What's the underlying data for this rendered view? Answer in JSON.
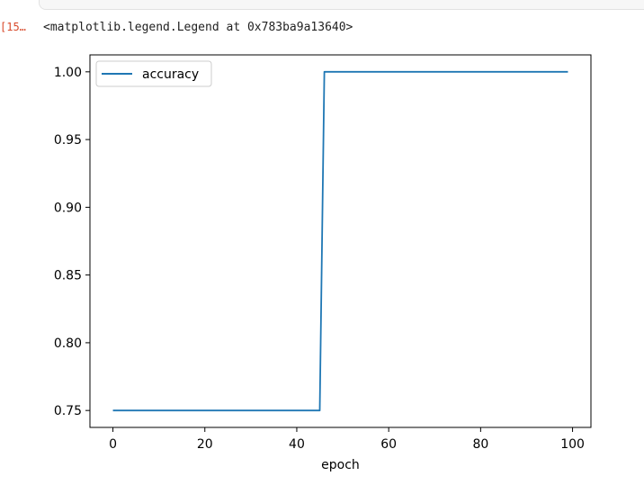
{
  "notebook": {
    "output_prompt": "[15…",
    "output_text": "<matplotlib.legend.Legend at 0x783ba9a13640>"
  },
  "chart_data": {
    "type": "line",
    "title": "",
    "xlabel": "epoch",
    "ylabel": "",
    "xlim": [
      -5,
      104
    ],
    "ylim": [
      0.7375,
      1.0125
    ],
    "xticks": [
      0,
      20,
      40,
      60,
      80,
      100
    ],
    "xtick_labels": [
      "0",
      "20",
      "40",
      "60",
      "80",
      "100"
    ],
    "yticks": [
      0.75,
      0.8,
      0.85,
      0.9,
      0.95,
      1.0
    ],
    "ytick_labels": [
      "0.75",
      "0.80",
      "0.85",
      "0.90",
      "0.95",
      "1.00"
    ],
    "grid": false,
    "legend_position": "upper left",
    "series": [
      {
        "name": "accuracy",
        "color": "#1f77b4",
        "x": [
          0,
          45,
          46,
          99
        ],
        "y": [
          0.75,
          0.75,
          1.0,
          1.0
        ]
      }
    ]
  }
}
